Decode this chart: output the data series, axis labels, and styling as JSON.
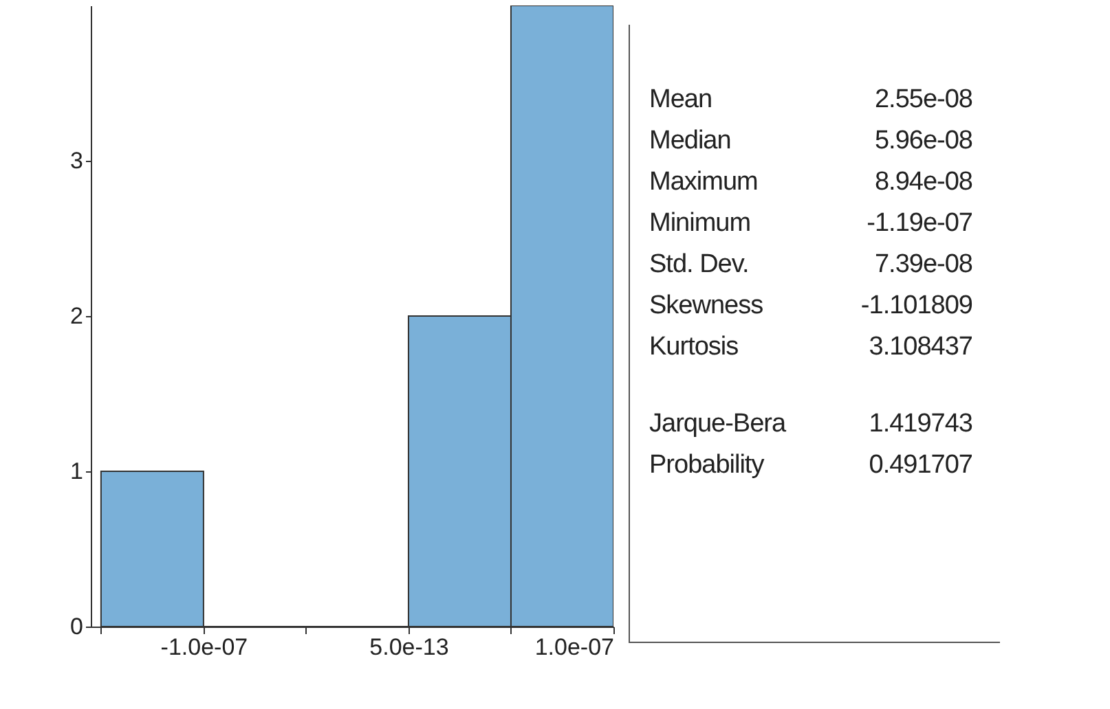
{
  "chart_data": {
    "type": "histogram",
    "bins": [
      -1.5e-07,
      -1e-07,
      -5e-08,
      0,
      5e-08,
      1e-07
    ],
    "values": [
      1,
      0,
      0,
      2,
      4
    ],
    "color": "#7ab0d8",
    "xlim": [
      -1.55e-07,
      1e-07
    ],
    "xticks": [
      {
        "value": -1.5e-07,
        "label": null
      },
      {
        "value": -1e-07,
        "label": "-1.0e-07"
      },
      {
        "value": -5e-08,
        "label": null
      },
      {
        "value": 5e-13,
        "label": "5.0e-13"
      },
      {
        "value": 5e-08,
        "label": null
      },
      {
        "value": 1e-07,
        "label": "1.0e-07"
      }
    ],
    "ylim": [
      0,
      4
    ],
    "yticks": [
      0,
      1,
      2,
      3
    ],
    "grid": false,
    "annotations": [
      "Mean 2.55e-08",
      "Median 5.96e-08",
      "Maximum 8.94e-08",
      "Minimum -1.19e-07",
      "Std. Dev. 7.39e-08",
      "Skewness -1.101809",
      "Kurtosis 3.108437",
      "Jarque-Bera 1.419743",
      "Probability 0.491707"
    ]
  }
}
